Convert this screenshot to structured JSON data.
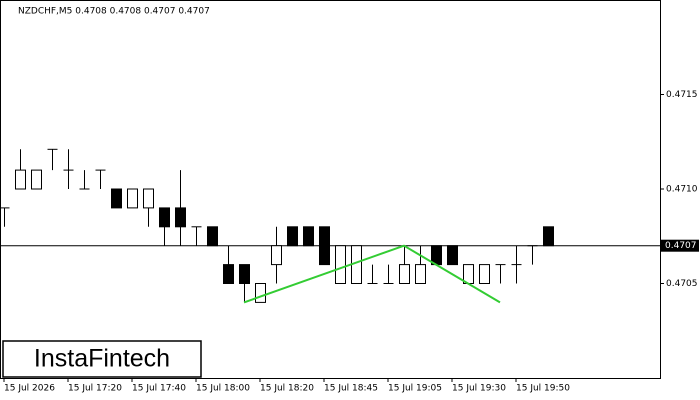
{
  "chart_data": {
    "type": "candlestick",
    "title": "NZDCHF,M5  0.4708 0.4708 0.4707 0.4707",
    "categories": [
      "15 Jul 2026",
      null,
      null,
      null,
      "15 Jul 17:20",
      null,
      null,
      null,
      "15 Jul 17:40",
      null,
      null,
      null,
      "15 Jul 18:00",
      null,
      null,
      null,
      "15 Jul 18:20",
      null,
      null,
      null,
      "15 Jul 18:45",
      null,
      null,
      null,
      "15 Jul 19:05",
      null,
      null,
      null,
      "15 Jul 19:30",
      null,
      null,
      null,
      "15 Jul 19:50",
      null,
      null
    ],
    "open": [
      0.4709,
      0.471,
      0.471,
      0.47121,
      0.4711,
      0.471,
      0.4711,
      0.471,
      0.4709,
      0.4709,
      0.4709,
      0.4709,
      0.4708,
      0.4708,
      0.4706,
      0.4706,
      0.4704,
      0.4706,
      0.4708,
      0.4708,
      0.4708,
      0.4705,
      0.4705,
      0.4705,
      0.4705,
      0.4705,
      0.4705,
      0.4707,
      0.4707,
      0.4705,
      0.4705,
      0.4706,
      0.4706,
      0.4707,
      0.4708
    ],
    "high": [
      0.4709,
      0.47121,
      0.4711,
      0.47121,
      0.47121,
      0.4711,
      0.4711,
      0.471,
      0.471,
      0.471,
      0.4709,
      0.4711,
      0.4708,
      0.4708,
      0.4707,
      0.4706,
      0.4705,
      0.4708,
      0.4708,
      0.4708,
      0.4708,
      0.4707,
      0.4707,
      0.4706,
      0.4706,
      0.4707,
      0.4707,
      0.4707,
      0.4707,
      0.4706,
      0.4706,
      0.4706,
      0.4707,
      0.4707,
      0.4708
    ],
    "low": [
      0.4708,
      0.471,
      0.471,
      0.4711,
      0.471,
      0.471,
      0.471,
      0.4709,
      0.4709,
      0.4708,
      0.4707,
      0.4707,
      0.4707,
      0.4707,
      0.4705,
      0.4704,
      0.4704,
      0.4705,
      0.4707,
      0.4707,
      0.4706,
      0.4705,
      0.4705,
      0.4705,
      0.4705,
      0.4705,
      0.4705,
      0.4706,
      0.4706,
      0.4705,
      0.4705,
      0.4705,
      0.4705,
      0.4706,
      0.4707
    ],
    "close": [
      0.4709,
      0.4711,
      0.4711,
      0.47121,
      0.4711,
      0.471,
      0.4711,
      0.4709,
      0.471,
      0.471,
      0.4708,
      0.4708,
      0.4708,
      0.4707,
      0.4705,
      0.4705,
      0.4705,
      0.4707,
      0.4707,
      0.4707,
      0.4706,
      0.4707,
      0.4707,
      0.4705,
      0.4705,
      0.4706,
      0.4706,
      0.4706,
      0.4706,
      0.4706,
      0.4706,
      0.4706,
      0.4706,
      0.4707,
      0.4707
    ],
    "up_color": "#ffffff",
    "down_color": "#000000",
    "ylim": [
      0.47,
      0.472
    ],
    "yticks": [
      {
        "value": 0.4705,
        "label": "0.4705"
      },
      {
        "value": 0.471,
        "label": "0.4710"
      },
      0.4715
    ],
    "last_price": 0.4707,
    "pattern": {
      "color": "#33cc33",
      "x": [
        15,
        25,
        31
      ],
      "y": [
        0.4704,
        0.4707,
        0.4704
      ]
    },
    "logo": "InstaFintech"
  }
}
